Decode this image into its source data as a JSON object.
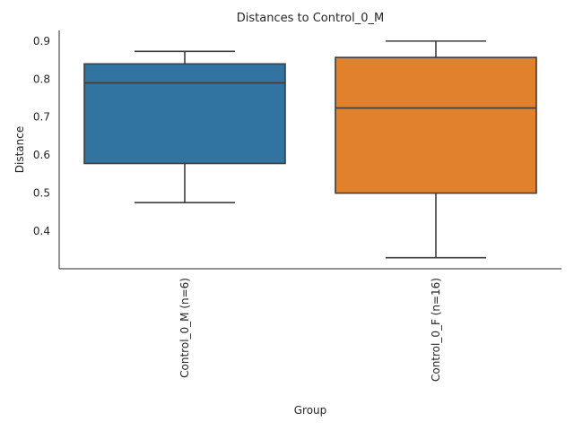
{
  "chart_data": {
    "type": "box",
    "title": "Distances to Control_0_M",
    "xlabel": "Group",
    "ylabel": "Distance",
    "categories": [
      "Control_0_M (n=6)",
      "Control_0_F (n=16)"
    ],
    "boxes": [
      {
        "category": "Control_0_M (n=6)",
        "whisker_low": 0.475,
        "q1": 0.578,
        "median": 0.79,
        "q3": 0.84,
        "whisker_high": 0.873,
        "color": "#3274a1"
      },
      {
        "category": "Control_0_F (n=16)",
        "whisker_low": 0.33,
        "q1": 0.5,
        "median": 0.724,
        "q3": 0.857,
        "whisker_high": 0.9,
        "color": "#e1812c"
      }
    ],
    "ylim": [
      0.301,
      0.928
    ],
    "yticks": [
      "0.4",
      "0.5",
      "0.6",
      "0.7",
      "0.8",
      "0.9"
    ],
    "grid": false,
    "spines": [
      "left",
      "bottom"
    ]
  }
}
